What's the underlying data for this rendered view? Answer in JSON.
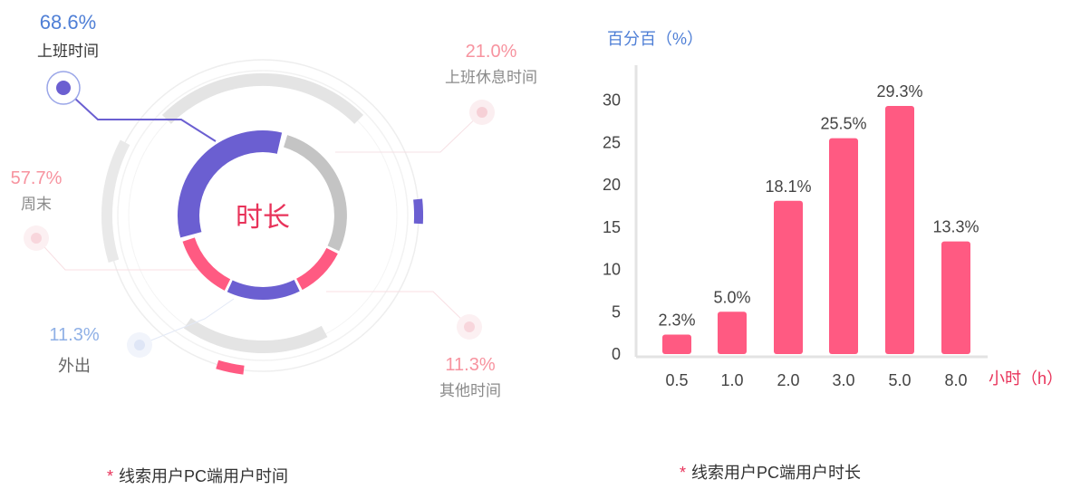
{
  "colors": {
    "purple": "#6b5fd1",
    "pink": "#ff5a82",
    "pink_light": "#f7939f",
    "blue": "#4f7fd6",
    "blue_light": "#8fb0e6",
    "gray": "#c4c4c4",
    "text_gray": "#8a8a8a",
    "red": "#e8335a"
  },
  "chart_data": [
    {
      "type": "pie",
      "center_label": "时长",
      "segments": [
        {
          "label": "上班时间",
          "value_text": "68.6%",
          "value": 68.6
        },
        {
          "label": "上班休息时间",
          "value_text": "21.0%",
          "value": 21.0
        },
        {
          "label": "周末",
          "value_text": "57.7%",
          "value": 57.7
        },
        {
          "label": "外出",
          "value_text": "11.3%",
          "value": 11.3
        },
        {
          "label": "其他时间",
          "value_text": "11.3%",
          "value": 11.3
        }
      ]
    },
    {
      "type": "bar",
      "ylabel": "百分百（%）",
      "xlabel": "小时（h）",
      "categories": [
        "0.5",
        "1.0",
        "2.0",
        "3.0",
        "5.0",
        "8.0"
      ],
      "values": [
        2.3,
        5.0,
        18.1,
        25.5,
        29.3,
        13.3
      ],
      "value_labels": [
        "2.3%",
        "5.0%",
        "18.1%",
        "25.5%",
        "29.3%",
        "13.3%"
      ],
      "yticks": [
        0,
        5,
        10,
        15,
        20,
        25,
        30
      ],
      "ylim": [
        0,
        33
      ]
    }
  ],
  "captions": {
    "left": "线索用户PC端用户时间",
    "right": "线索用户PC端用户时长",
    "star": "*"
  }
}
